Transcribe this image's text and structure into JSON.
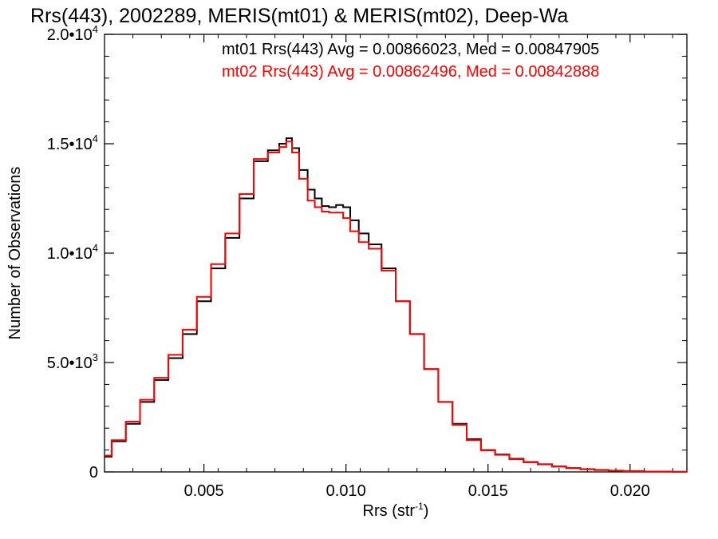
{
  "chart_data": {
    "type": "line",
    "title": "Rrs(443), 2002289, MERIS(mt01) & MERIS(mt02), Deep-Wa",
    "xlabel": "Rrs (str",
    "xlabel_sup": "-1",
    "xlabel_end": ")",
    "ylabel": "Number of Observations",
    "xlim": [
      0.0015,
      0.022
    ],
    "ylim": [
      0,
      20000
    ],
    "x_ticks": [
      {
        "value": 0.005,
        "label": "0.005"
      },
      {
        "value": 0.01,
        "label": "0.010"
      },
      {
        "value": 0.015,
        "label": "0.015"
      },
      {
        "value": 0.02,
        "label": "0.020"
      }
    ],
    "y_ticks": [
      {
        "value": 0,
        "base": "0",
        "exp": ""
      },
      {
        "value": 5000,
        "base": "5.0•10",
        "exp": "3"
      },
      {
        "value": 10000,
        "base": "1.0•10",
        "exp": "4"
      },
      {
        "value": 15000,
        "base": "1.5•10",
        "exp": "4"
      },
      {
        "value": 20000,
        "base": "2.0•10",
        "exp": "4"
      }
    ],
    "series": [
      {
        "name": "mt01",
        "color": "#000000",
        "legend": "mt01 Rrs(443) Avg = 0.00866023, Med = 0.00847905",
        "x": [
          0.0015,
          0.002,
          0.0025,
          0.003,
          0.0035,
          0.004,
          0.0045,
          0.005,
          0.0055,
          0.006,
          0.0065,
          0.007,
          0.0075,
          0.0078,
          0.008,
          0.0082,
          0.0085,
          0.0088,
          0.009,
          0.0093,
          0.0095,
          0.0098,
          0.01,
          0.0103,
          0.0106,
          0.011,
          0.0115,
          0.012,
          0.0125,
          0.013,
          0.0135,
          0.014,
          0.0145,
          0.015,
          0.0155,
          0.016,
          0.0165,
          0.017,
          0.0175,
          0.018,
          0.0185,
          0.019,
          0.0195,
          0.02,
          0.021,
          0.022
        ],
        "y": [
          700,
          1400,
          2200,
          3200,
          4200,
          5200,
          6300,
          7800,
          9300,
          10700,
          12500,
          14200,
          14700,
          15000,
          15250,
          14800,
          13800,
          12900,
          12500,
          12150,
          12100,
          12200,
          12100,
          11500,
          10900,
          10400,
          9300,
          7800,
          6300,
          4700,
          3200,
          2200,
          1500,
          1000,
          800,
          600,
          450,
          350,
          250,
          180,
          130,
          90,
          60,
          40,
          15,
          5
        ]
      },
      {
        "name": "mt02",
        "color": "#ff0000",
        "legend": "mt02 Rrs(443) Avg = 0.00862496, Med = 0.00842888",
        "x": [
          0.0015,
          0.002,
          0.0025,
          0.003,
          0.0035,
          0.004,
          0.0045,
          0.005,
          0.0055,
          0.006,
          0.0065,
          0.007,
          0.0075,
          0.0078,
          0.008,
          0.0082,
          0.0085,
          0.0088,
          0.009,
          0.0093,
          0.0095,
          0.0098,
          0.01,
          0.0103,
          0.0106,
          0.011,
          0.0115,
          0.012,
          0.0125,
          0.013,
          0.0135,
          0.014,
          0.0145,
          0.015,
          0.0155,
          0.016,
          0.0165,
          0.017,
          0.0175,
          0.018,
          0.0185,
          0.019,
          0.0195,
          0.02,
          0.021,
          0.022
        ],
        "y": [
          750,
          1450,
          2300,
          3300,
          4300,
          5350,
          6500,
          8000,
          9500,
          10900,
          12700,
          14300,
          14600,
          14850,
          15100,
          14600,
          13400,
          12400,
          12100,
          11900,
          11850,
          11850,
          11600,
          11000,
          10500,
          10200,
          9200,
          7800,
          6300,
          4700,
          3200,
          2150,
          1450,
          980,
          780,
          580,
          440,
          340,
          240,
          170,
          120,
          80,
          55,
          35,
          12,
          4
        ]
      }
    ]
  }
}
